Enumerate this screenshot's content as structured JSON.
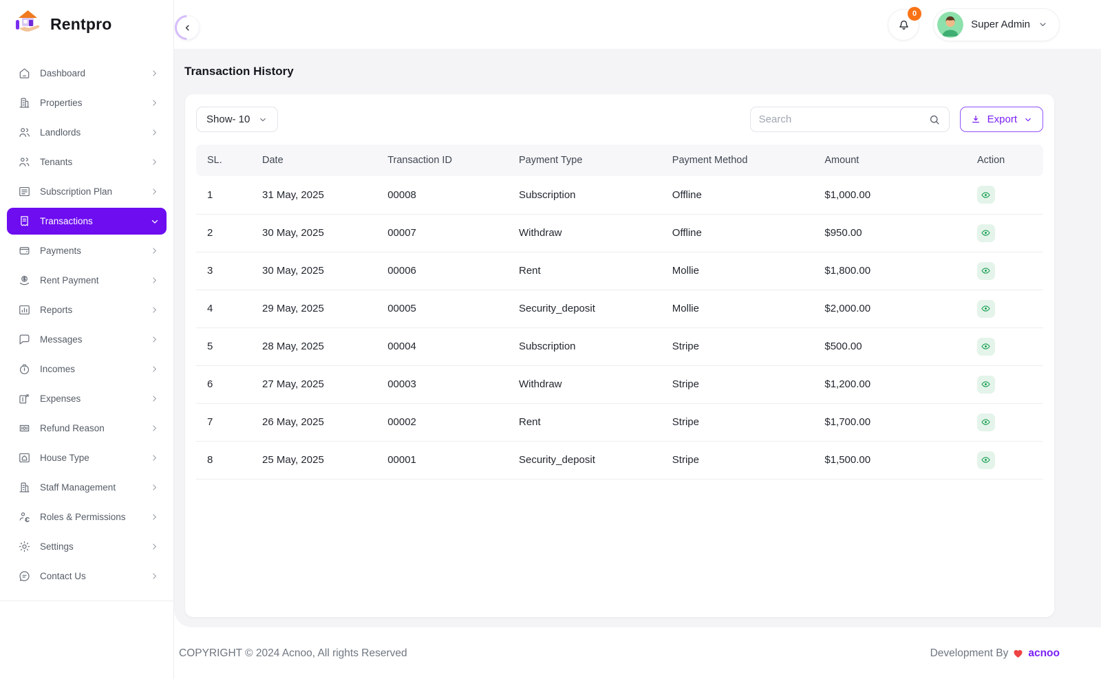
{
  "brand": {
    "name": "Rentpro",
    "logo_icon": "house-hand-icon"
  },
  "header": {
    "collapse_icon": "chevron-left-icon",
    "notification": {
      "icon": "bell-icon",
      "count": "0"
    },
    "user": {
      "name": "Super Admin",
      "avatar_icon": "avatar-man-icon"
    }
  },
  "sidebar": {
    "items": [
      {
        "label": "Dashboard",
        "icon": "home-icon",
        "chevron": "right",
        "active": false
      },
      {
        "label": "Properties",
        "icon": "building-icon",
        "chevron": "right",
        "active": false
      },
      {
        "label": "Landlords",
        "icon": "user-group-icon",
        "chevron": "right",
        "active": false
      },
      {
        "label": "Tenants",
        "icon": "users-icon",
        "chevron": "right",
        "active": false
      },
      {
        "label": "Subscription Plan",
        "icon": "card-icon",
        "chevron": "right",
        "active": false
      },
      {
        "label": "Transactions",
        "icon": "receipt-icon",
        "chevron": "down",
        "active": true
      },
      {
        "label": "Payments",
        "icon": "wallet-icon",
        "chevron": "right",
        "active": false
      },
      {
        "label": "Rent Payment",
        "icon": "coin-icon",
        "chevron": "right",
        "active": false
      },
      {
        "label": "Reports",
        "icon": "chart-icon",
        "chevron": "right",
        "active": false
      },
      {
        "label": "Messages",
        "icon": "chat-icon",
        "chevron": "right",
        "active": false
      },
      {
        "label": "Incomes",
        "icon": "money-bag-icon",
        "chevron": "right",
        "active": false
      },
      {
        "label": "Expenses",
        "icon": "expense-icon",
        "chevron": "right",
        "active": false
      },
      {
        "label": "Refund Reason",
        "icon": "refund-icon",
        "chevron": "right",
        "active": false
      },
      {
        "label": "House Type",
        "icon": "house-type-icon",
        "chevron": "right",
        "active": false
      },
      {
        "label": "Staff Management",
        "icon": "staff-icon",
        "chevron": "right",
        "active": false
      },
      {
        "label": "Roles & Permissions",
        "icon": "roles-icon",
        "chevron": "right",
        "active": false
      },
      {
        "label": "Settings",
        "icon": "gear-icon",
        "chevron": "right",
        "active": false
      },
      {
        "label": "Contact Us",
        "icon": "contact-icon",
        "chevron": "right",
        "active": false
      }
    ]
  },
  "page": {
    "title": "Transaction History"
  },
  "toolbar": {
    "show_label": "Show- 10",
    "search_placeholder": "Search",
    "export_label": "Export"
  },
  "table": {
    "columns": [
      "SL.",
      "Date",
      "Transaction ID",
      "Payment Type",
      "Payment Method",
      "Amount",
      "Action"
    ],
    "rows": [
      {
        "sl": "1",
        "date": "31 May, 2025",
        "txid": "00008",
        "type": "Subscription",
        "method": "Offline",
        "amount": "$1,000.00"
      },
      {
        "sl": "2",
        "date": "30 May, 2025",
        "txid": "00007",
        "type": "Withdraw",
        "method": "Offline",
        "amount": "$950.00"
      },
      {
        "sl": "3",
        "date": "30 May, 2025",
        "txid": "00006",
        "type": "Rent",
        "method": "Mollie",
        "amount": "$1,800.00"
      },
      {
        "sl": "4",
        "date": "29 May, 2025",
        "txid": "00005",
        "type": "Security_deposit",
        "method": "Mollie",
        "amount": "$2,000.00"
      },
      {
        "sl": "5",
        "date": "28 May, 2025",
        "txid": "00004",
        "type": "Subscription",
        "method": "Stripe",
        "amount": "$500.00"
      },
      {
        "sl": "6",
        "date": "27 May, 2025",
        "txid": "00003",
        "type": "Withdraw",
        "method": "Stripe",
        "amount": "$1,200.00"
      },
      {
        "sl": "7",
        "date": "26 May, 2025",
        "txid": "00002",
        "type": "Rent",
        "method": "Stripe",
        "amount": "$1,700.00"
      },
      {
        "sl": "8",
        "date": "25 May, 2025",
        "txid": "00001",
        "type": "Security_deposit",
        "method": "Stripe",
        "amount": "$1,500.00"
      }
    ],
    "action_icon": "eye-icon"
  },
  "footer": {
    "copyright": "COPYRIGHT © 2024 Acnoo, All rights Reserved",
    "dev_by": "Development By",
    "heart_icon": "heart-icon",
    "dev_brand": "acnoo"
  },
  "colors": {
    "primary_purple": "#6d0df0",
    "export_purple": "#7a1ff5",
    "badge_orange": "#f97316",
    "action_green": "#1aa053",
    "action_green_bg": "#e4f4ea",
    "content_bg": "#f4f4f6"
  }
}
